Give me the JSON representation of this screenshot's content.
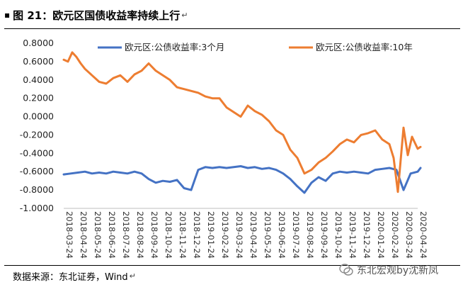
{
  "header": {
    "title": "图 21：欧元区国债收益率持续上行",
    "marker": "▪",
    "return_mark": "↵"
  },
  "footer": {
    "source": "数据来源：东北证券，Wind",
    "return_mark": "↵",
    "watermark": "东北宏观by沈新凤"
  },
  "chart_data": {
    "type": "line",
    "title": "",
    "xlabel": "",
    "ylabel": "",
    "ylim": [
      -1.0,
      0.8
    ],
    "yticks": [
      "0.8000",
      "0.6000",
      "0.4000",
      "0.2000",
      "0.0000",
      "-0.2000",
      "-0.4000",
      "-0.6000",
      "-0.8000",
      "-1.0000"
    ],
    "ytick_values": [
      0.8,
      0.6,
      0.4,
      0.2,
      0.0,
      -0.2,
      -0.4,
      -0.6,
      -0.8,
      -1.0
    ],
    "xticks": [
      "2018-03-24",
      "2018-04-24",
      "2018-05-24",
      "2018-06-24",
      "2018-07-24",
      "2018-08-24",
      "2018-09-24",
      "2018-10-24",
      "2018-11-24",
      "2018-12-24",
      "2019-01-24",
      "2019-02-24",
      "2019-03-24",
      "2019-04-24",
      "2019-05-24",
      "2019-06-24",
      "2019-07-24",
      "2019-08-24",
      "2019-09-24",
      "2019-10-24",
      "2019-11-24",
      "2019-12-24",
      "2020-01-24",
      "2020-02-24",
      "2020-03-24",
      "2020-04-24"
    ],
    "grid": false,
    "legend_position": "top",
    "series": [
      {
        "name": "欧元区:公债收益率:3个月",
        "color": "#4472C4",
        "x": [
          0.0,
          0.5,
          1.0,
          1.5,
          2.0,
          2.5,
          3.0,
          3.5,
          4.0,
          4.5,
          5.0,
          5.5,
          6.0,
          6.5,
          7.0,
          7.5,
          8.0,
          8.5,
          9.0,
          9.5,
          10.0,
          10.5,
          11.0,
          11.5,
          12.0,
          12.5,
          13.0,
          13.5,
          14.0,
          14.5,
          15.0,
          15.5,
          16.0,
          16.5,
          17.0,
          17.5,
          18.0,
          18.5,
          19.0,
          19.5,
          20.0,
          20.5,
          21.0,
          21.5,
          22.0,
          22.5,
          23.0,
          23.5,
          24.0,
          24.5,
          25.0,
          25.2
        ],
        "y": [
          -0.63,
          -0.62,
          -0.61,
          -0.6,
          -0.62,
          -0.61,
          -0.62,
          -0.6,
          -0.61,
          -0.62,
          -0.6,
          -0.62,
          -0.68,
          -0.72,
          -0.7,
          -0.71,
          -0.69,
          -0.78,
          -0.8,
          -0.58,
          -0.55,
          -0.56,
          -0.55,
          -0.56,
          -0.55,
          -0.54,
          -0.56,
          -0.55,
          -0.57,
          -0.56,
          -0.58,
          -0.62,
          -0.68,
          -0.76,
          -0.83,
          -0.72,
          -0.66,
          -0.7,
          -0.62,
          -0.6,
          -0.61,
          -0.6,
          -0.61,
          -0.62,
          -0.58,
          -0.57,
          -0.56,
          -0.58,
          -0.8,
          -0.62,
          -0.6,
          -0.56
        ]
      },
      {
        "name": "欧元区:公债收益率:10年",
        "color": "#ED7D31",
        "x": [
          0.0,
          0.3,
          0.6,
          0.9,
          1.2,
          1.5,
          2.0,
          2.5,
          3.0,
          3.5,
          4.0,
          4.5,
          5.0,
          5.5,
          6.0,
          6.5,
          7.0,
          7.5,
          8.0,
          8.5,
          9.0,
          9.5,
          10.0,
          10.5,
          11.0,
          11.5,
          12.0,
          12.5,
          13.0,
          13.5,
          14.0,
          14.5,
          15.0,
          15.5,
          16.0,
          16.5,
          17.0,
          17.5,
          18.0,
          18.5,
          19.0,
          19.5,
          20.0,
          20.5,
          21.0,
          21.5,
          22.0,
          22.5,
          23.0,
          23.3,
          23.6,
          24.0,
          24.3,
          24.6,
          25.0,
          25.2
        ],
        "y": [
          0.62,
          0.6,
          0.7,
          0.65,
          0.58,
          0.52,
          0.45,
          0.38,
          0.36,
          0.42,
          0.45,
          0.38,
          0.46,
          0.5,
          0.58,
          0.5,
          0.45,
          0.4,
          0.32,
          0.3,
          0.28,
          0.26,
          0.22,
          0.2,
          0.2,
          0.1,
          0.05,
          0.0,
          0.12,
          0.06,
          0.02,
          -0.05,
          -0.15,
          -0.2,
          -0.36,
          -0.45,
          -0.62,
          -0.58,
          -0.5,
          -0.45,
          -0.38,
          -0.3,
          -0.25,
          -0.28,
          -0.2,
          -0.18,
          -0.15,
          -0.25,
          -0.3,
          -0.45,
          -0.82,
          -0.12,
          -0.42,
          -0.22,
          -0.35,
          -0.33
        ]
      }
    ]
  }
}
